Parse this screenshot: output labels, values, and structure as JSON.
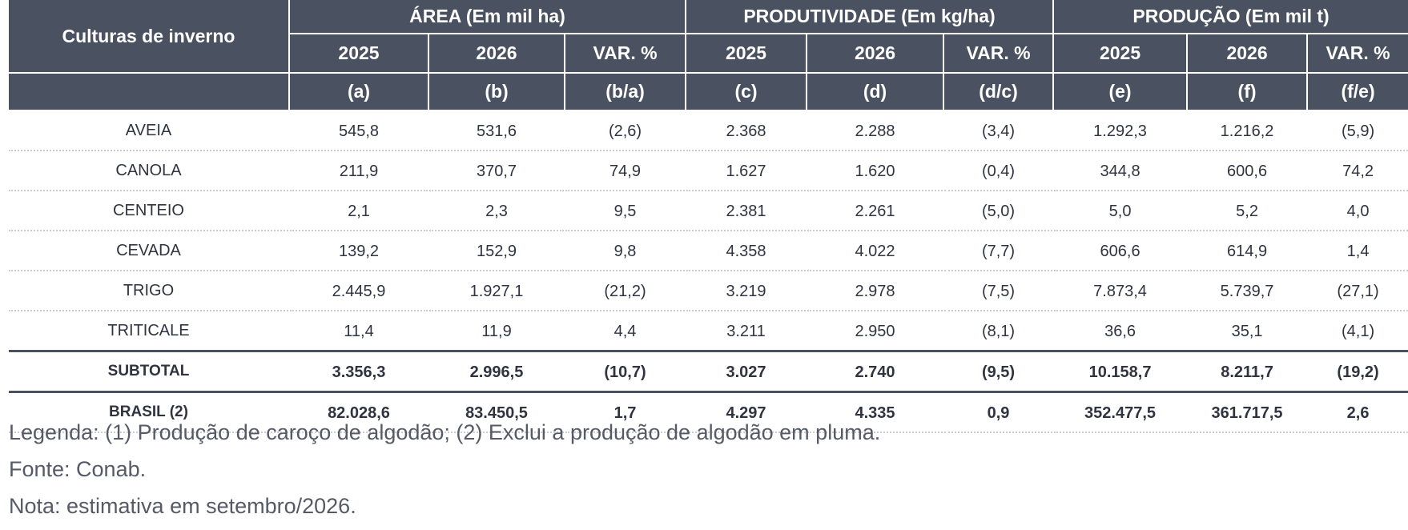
{
  "header": {
    "row_label": "Culturas de inverno",
    "groups": [
      {
        "title": "ÁREA (Em mil ha)",
        "years": [
          "2025",
          "2026",
          "VAR. %"
        ],
        "codes": [
          "(a)",
          "(b)",
          "(b/a)"
        ]
      },
      {
        "title": "PRODUTIVIDADE (Em kg/ha)",
        "years": [
          "2025",
          "2026",
          "VAR. %"
        ],
        "codes": [
          "(c)",
          "(d)",
          "(d/c)"
        ]
      },
      {
        "title": "PRODUÇÃO (Em mil t)",
        "years": [
          "2025",
          "2026",
          "VAR. %"
        ],
        "codes": [
          "(e)",
          "(f)",
          "(f/e)"
        ]
      }
    ]
  },
  "rows": [
    {
      "name": "AVEIA",
      "values": [
        "545,8",
        "531,6",
        "(2,6)",
        "2.368",
        "2.288",
        "(3,4)",
        "1.292,3",
        "1.216,2",
        "(5,9)"
      ]
    },
    {
      "name": "CANOLA",
      "values": [
        "211,9",
        "370,7",
        "74,9",
        "1.627",
        "1.620",
        "(0,4)",
        "344,8",
        "600,6",
        "74,2"
      ]
    },
    {
      "name": "CENTEIO",
      "values": [
        "2,1",
        "2,3",
        "9,5",
        "2.381",
        "2.261",
        "(5,0)",
        "5,0",
        "5,2",
        "4,0"
      ]
    },
    {
      "name": "CEVADA",
      "values": [
        "139,2",
        "152,9",
        "9,8",
        "4.358",
        "4.022",
        "(7,7)",
        "606,6",
        "614,9",
        "1,4"
      ]
    },
    {
      "name": "TRIGO",
      "values": [
        "2.445,9",
        "1.927,1",
        "(21,2)",
        "3.219",
        "2.978",
        "(7,5)",
        "7.873,4",
        "5.739,7",
        "(27,1)"
      ]
    },
    {
      "name": "TRITICALE",
      "values": [
        "11,4",
        "11,9",
        "4,4",
        "3.211",
        "2.950",
        "(8,1)",
        "36,6",
        "35,1",
        "(4,1)"
      ]
    }
  ],
  "subtotal": {
    "name": "SUBTOTAL",
    "values": [
      "3.356,3",
      "2.996,5",
      "(10,7)",
      "3.027",
      "2.740",
      "(9,5)",
      "10.158,7",
      "8.211,7",
      "(19,2)"
    ]
  },
  "brasil": {
    "name": "BRASIL (2)",
    "values": [
      "82.028,6",
      "83.450,5",
      "1,7",
      "4.297",
      "4.335",
      "0,9",
      "352.477,5",
      "361.717,5",
      "2,6"
    ]
  },
  "notes": {
    "legenda": "Legenda: (1) Produção de caroço de algodão; (2) Exclui a produção de algodão em pluma.",
    "fonte": "Fonte: Conab.",
    "nota": "Nota: estimativa em setembro/2026."
  }
}
